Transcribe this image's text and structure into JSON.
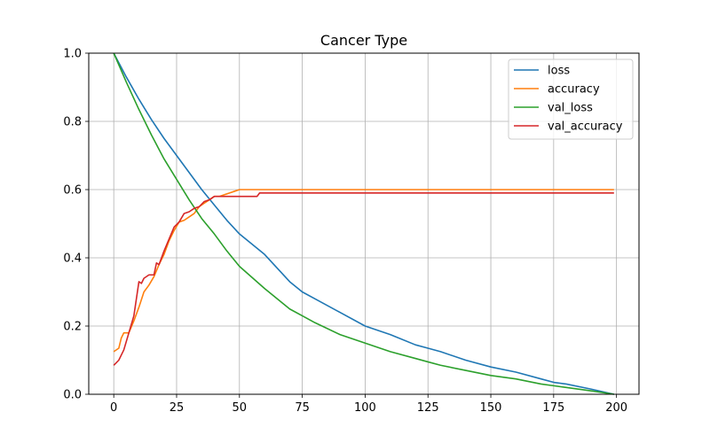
{
  "chart_data": {
    "type": "line",
    "title": "Cancer Type",
    "xlabel": "",
    "ylabel": "",
    "xlim": [
      -9.95,
      208.95
    ],
    "ylim": [
      0.0,
      1.0
    ],
    "xticks": [
      0,
      25,
      50,
      75,
      100,
      125,
      150,
      175,
      200
    ],
    "yticks": [
      0.0,
      0.2,
      0.4,
      0.6,
      0.8,
      1.0
    ],
    "xtick_labels": [
      "0",
      "25",
      "50",
      "75",
      "100",
      "125",
      "150",
      "175",
      "200"
    ],
    "ytick_labels": [
      "0.0",
      "0.2",
      "0.4",
      "0.6",
      "0.8",
      "1.0"
    ],
    "grid": true,
    "legend_position": "top-right",
    "series": [
      {
        "name": "loss",
        "color": "#1f77b4",
        "x": [
          0,
          5,
          10,
          15,
          20,
          25,
          30,
          35,
          40,
          45,
          50,
          60,
          70,
          75,
          80,
          90,
          100,
          110,
          120,
          125,
          130,
          140,
          150,
          160,
          170,
          175,
          180,
          190,
          199
        ],
        "y": [
          1.0,
          0.93,
          0.865,
          0.805,
          0.75,
          0.7,
          0.65,
          0.6,
          0.555,
          0.51,
          0.47,
          0.41,
          0.33,
          0.3,
          0.28,
          0.24,
          0.2,
          0.175,
          0.145,
          0.135,
          0.125,
          0.1,
          0.08,
          0.065,
          0.045,
          0.035,
          0.03,
          0.015,
          0.0
        ]
      },
      {
        "name": "accuracy",
        "color": "#ff7f0e",
        "x": [
          0,
          2,
          3,
          4,
          6,
          8,
          10,
          12,
          14,
          16,
          18,
          20,
          22,
          24,
          26,
          28,
          30,
          32,
          34,
          36,
          38,
          40,
          42,
          44,
          46,
          48,
          50,
          55,
          199
        ],
        "y": [
          0.125,
          0.135,
          0.165,
          0.18,
          0.18,
          0.215,
          0.255,
          0.3,
          0.32,
          0.345,
          0.38,
          0.41,
          0.45,
          0.48,
          0.505,
          0.51,
          0.52,
          0.53,
          0.55,
          0.56,
          0.57,
          0.58,
          0.58,
          0.585,
          0.59,
          0.595,
          0.6,
          0.6,
          0.6
        ]
      },
      {
        "name": "val_loss",
        "color": "#2ca02c",
        "x": [
          0,
          5,
          10,
          15,
          20,
          25,
          30,
          35,
          40,
          45,
          50,
          60,
          70,
          75,
          80,
          90,
          100,
          110,
          120,
          125,
          130,
          140,
          150,
          160,
          170,
          175,
          180,
          190,
          199
        ],
        "y": [
          1.0,
          0.915,
          0.835,
          0.76,
          0.69,
          0.63,
          0.57,
          0.515,
          0.47,
          0.42,
          0.375,
          0.31,
          0.25,
          0.23,
          0.21,
          0.175,
          0.15,
          0.125,
          0.105,
          0.095,
          0.085,
          0.07,
          0.055,
          0.045,
          0.03,
          0.025,
          0.02,
          0.01,
          0.0
        ]
      },
      {
        "name": "val_accuracy",
        "color": "#d62728",
        "x": [
          0,
          2,
          4,
          6,
          8,
          10,
          11,
          12,
          14,
          16,
          17,
          18,
          20,
          22,
          24,
          26,
          28,
          30,
          32,
          34,
          36,
          38,
          40,
          45,
          50,
          57,
          58,
          199
        ],
        "y": [
          0.085,
          0.1,
          0.13,
          0.18,
          0.23,
          0.33,
          0.325,
          0.34,
          0.35,
          0.35,
          0.385,
          0.38,
          0.42,
          0.455,
          0.49,
          0.505,
          0.53,
          0.535,
          0.545,
          0.55,
          0.565,
          0.57,
          0.58,
          0.58,
          0.58,
          0.58,
          0.59,
          0.59
        ]
      }
    ]
  }
}
